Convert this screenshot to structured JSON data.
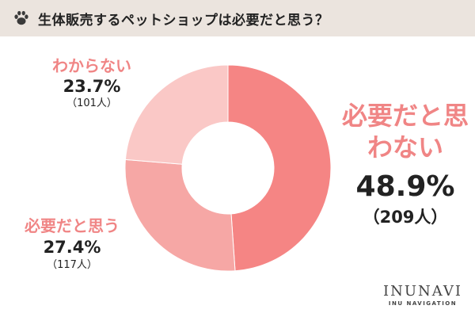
{
  "header": {
    "title": "生体販売するペットショップは必要だと思う？",
    "icon": "paw-icon"
  },
  "chart_data": {
    "type": "pie",
    "title": "生体販売するペットショップは必要だと思う？",
    "donut": true,
    "slices": [
      {
        "label": "必要だと思わない",
        "percent": "48.9%",
        "value": 48.9,
        "count": "（209人）",
        "color": "#f58584"
      },
      {
        "label": "必要だと思う",
        "percent": "27.4%",
        "value": 27.4,
        "count": "（117人）",
        "color": "#f6a7a5"
      },
      {
        "label": "わからない",
        "percent": "23.7%",
        "value": 23.7,
        "count": "（101人）",
        "color": "#fac8c6"
      }
    ]
  },
  "logo": {
    "brand": "INUNAVI",
    "sub": "INU NAVIGATION"
  }
}
